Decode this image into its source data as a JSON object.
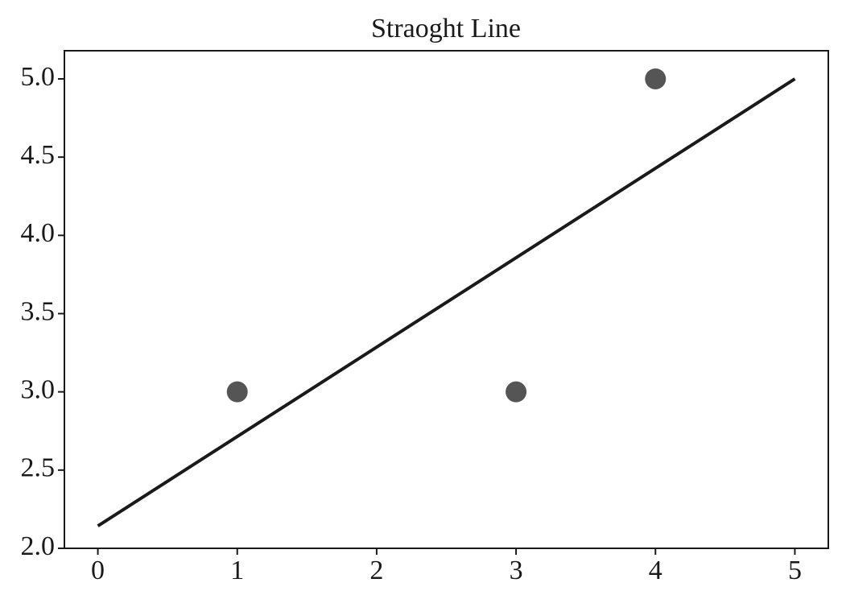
{
  "chart_data": {
    "type": "scatter",
    "title": "Straoght Line",
    "x": [
      1,
      3,
      4
    ],
    "values": [
      3,
      3,
      5
    ],
    "color": "#555555",
    "line": {
      "x": [
        0,
        5
      ],
      "values": [
        2.1429,
        5.0
      ],
      "color": "#1a1a1a"
    },
    "xlim": [
      -0.24,
      5.24
    ],
    "ylim": [
      2.0,
      5.18
    ],
    "xticks": [
      0,
      1,
      2,
      3,
      4,
      5
    ],
    "yticks": [
      {
        "value": 2,
        "label": "2.0"
      },
      {
        "value": 2.5,
        "label": "2.5"
      },
      {
        "value": 3,
        "label": "3.0"
      },
      {
        "value": 3.5,
        "label": "3.5"
      },
      {
        "value": 4,
        "label": "4.0"
      },
      {
        "value": 4.5,
        "label": "4.5"
      },
      {
        "value": 5,
        "label": "5.0"
      }
    ],
    "grid": false
  }
}
